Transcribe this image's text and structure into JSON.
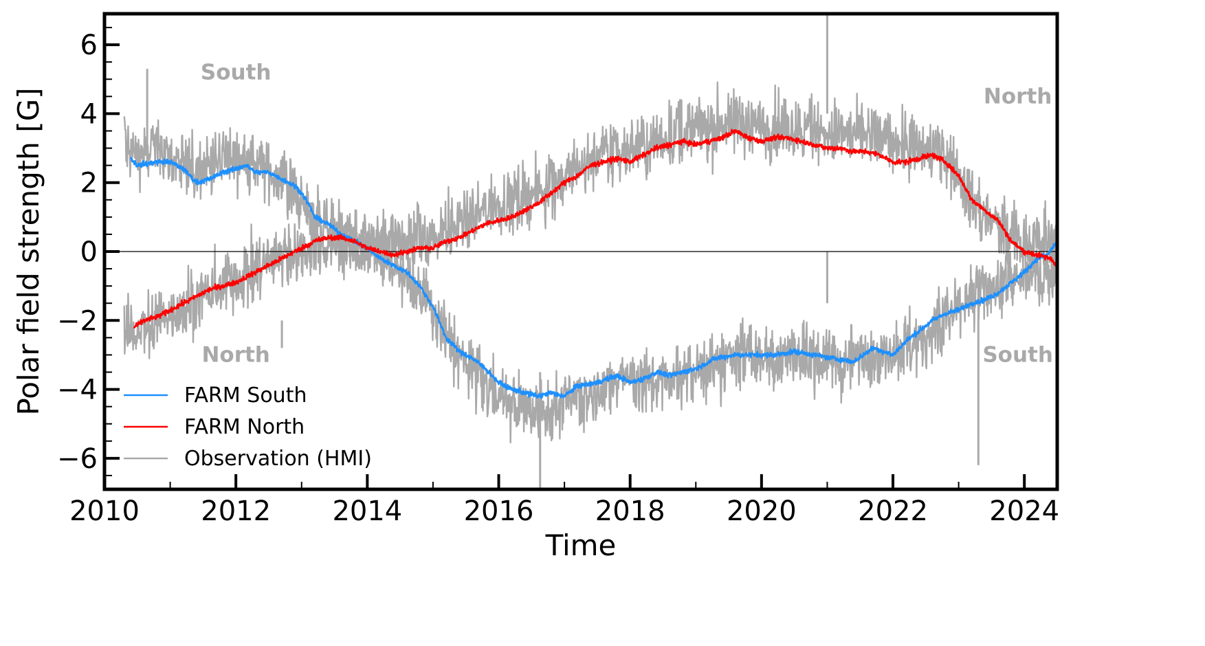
{
  "chart_data": {
    "type": "line",
    "xlabel": "Time",
    "ylabel": "Polar field strength [G]",
    "xlim": [
      2010.0,
      2024.5
    ],
    "ylim": [
      -6.9,
      6.9
    ],
    "x_ticks": [
      2010,
      2012,
      2014,
      2016,
      2018,
      2020,
      2022,
      2024
    ],
    "x_tick_labels": [
      "2010",
      "2012",
      "2014",
      "2016",
      "2018",
      "2020",
      "2022",
      "2024"
    ],
    "y_ticks": [
      6,
      4,
      2,
      0,
      -2,
      -4,
      -6
    ],
    "y_tick_labels": [
      "6",
      "4",
      "2",
      "0",
      "−2",
      "−4",
      "−6"
    ],
    "zero_line": true,
    "grid": false,
    "legend_position": "lower-left",
    "annotations": [
      {
        "text": "South",
        "x": 2012.0,
        "y": 5.0
      },
      {
        "text": "North",
        "x": 2012.0,
        "y": -3.2
      },
      {
        "text": "North",
        "x": 2023.9,
        "y": 4.3
      },
      {
        "text": "South",
        "x": 2023.9,
        "y": -3.2
      }
    ],
    "colors": {
      "farm_south": "#1e90ff",
      "farm_north": "#ff0000",
      "observation": "#a9a9a9"
    },
    "series": [
      {
        "name": "FARM South",
        "color": "#1e90ff",
        "x": [
          2010.4,
          2010.5,
          2010.8,
          2011.0,
          2011.2,
          2011.4,
          2011.6,
          2011.8,
          2012.0,
          2012.15,
          2012.3,
          2012.5,
          2012.7,
          2012.9,
          2013.0,
          2013.1,
          2013.2,
          2013.4,
          2013.6,
          2013.8,
          2014.0,
          2014.2,
          2014.4,
          2014.6,
          2014.8,
          2015.0,
          2015.2,
          2015.4,
          2015.6,
          2015.8,
          2016.0,
          2016.2,
          2016.4,
          2016.6,
          2016.8,
          2017.0,
          2017.2,
          2017.5,
          2017.8,
          2018.0,
          2018.2,
          2018.4,
          2018.6,
          2018.8,
          2019.0,
          2019.3,
          2019.6,
          2019.9,
          2020.2,
          2020.5,
          2020.8,
          2021.1,
          2021.4,
          2021.7,
          2022.0,
          2022.2,
          2022.4,
          2022.6,
          2022.8,
          2023.0,
          2023.2,
          2023.4,
          2023.6,
          2023.8,
          2024.0,
          2024.2,
          2024.35,
          2024.5
        ],
        "y": [
          2.7,
          2.5,
          2.6,
          2.6,
          2.4,
          2.0,
          2.1,
          2.3,
          2.4,
          2.5,
          2.3,
          2.3,
          2.1,
          1.9,
          1.7,
          1.4,
          1.0,
          0.8,
          0.5,
          0.3,
          0.1,
          -0.2,
          -0.4,
          -0.6,
          -1.0,
          -1.6,
          -2.5,
          -2.9,
          -3.1,
          -3.4,
          -3.8,
          -4.0,
          -4.1,
          -4.2,
          -4.1,
          -4.2,
          -3.9,
          -3.8,
          -3.6,
          -3.8,
          -3.7,
          -3.5,
          -3.6,
          -3.5,
          -3.4,
          -3.1,
          -3.0,
          -3.0,
          -3.0,
          -2.9,
          -3.0,
          -3.1,
          -3.2,
          -2.8,
          -3.0,
          -2.6,
          -2.3,
          -2.0,
          -1.8,
          -1.7,
          -1.5,
          -1.4,
          -1.2,
          -0.9,
          -0.6,
          -0.2,
          -0.1,
          0.3
        ]
      },
      {
        "name": "FARM North",
        "color": "#ff0000",
        "x": [
          2010.45,
          2010.6,
          2010.8,
          2011.0,
          2011.2,
          2011.4,
          2011.6,
          2011.8,
          2012.0,
          2012.2,
          2012.4,
          2012.6,
          2012.8,
          2013.0,
          2013.2,
          2013.4,
          2013.6,
          2013.8,
          2014.0,
          2014.2,
          2014.4,
          2014.6,
          2014.8,
          2015.0,
          2015.2,
          2015.4,
          2015.6,
          2015.8,
          2016.0,
          2016.2,
          2016.4,
          2016.6,
          2016.8,
          2017.0,
          2017.2,
          2017.4,
          2017.6,
          2017.8,
          2018.0,
          2018.2,
          2018.4,
          2018.6,
          2018.8,
          2019.0,
          2019.2,
          2019.4,
          2019.6,
          2019.8,
          2020.0,
          2020.2,
          2020.4,
          2020.6,
          2020.8,
          2021.0,
          2021.2,
          2021.4,
          2021.6,
          2021.8,
          2022.0,
          2022.2,
          2022.4,
          2022.6,
          2022.8,
          2023.0,
          2023.2,
          2023.4,
          2023.6,
          2023.8,
          2024.0,
          2024.2,
          2024.4,
          2024.5
        ],
        "y": [
          -2.2,
          -2.0,
          -1.9,
          -1.7,
          -1.5,
          -1.3,
          -1.1,
          -1.0,
          -0.9,
          -0.7,
          -0.5,
          -0.3,
          -0.1,
          0.1,
          0.3,
          0.4,
          0.4,
          0.3,
          0.1,
          0.0,
          -0.1,
          0.0,
          0.1,
          0.1,
          0.3,
          0.4,
          0.6,
          0.8,
          0.9,
          1.0,
          1.2,
          1.4,
          1.7,
          2.0,
          2.2,
          2.5,
          2.6,
          2.7,
          2.6,
          2.8,
          3.0,
          3.1,
          3.2,
          3.1,
          3.2,
          3.3,
          3.5,
          3.3,
          3.2,
          3.3,
          3.3,
          3.2,
          3.1,
          3.0,
          3.0,
          2.9,
          2.9,
          2.8,
          2.6,
          2.6,
          2.7,
          2.8,
          2.6,
          2.2,
          1.5,
          1.2,
          0.9,
          0.3,
          0.0,
          -0.1,
          -0.2,
          -0.4
        ]
      },
      {
        "name": "Observation (HMI)",
        "color": "#a9a9a9",
        "upper_x": [
          2010.3,
          2010.5,
          2010.8,
          2011.0,
          2011.3,
          2011.6,
          2012.0,
          2012.3,
          2012.6,
          2012.9,
          2013.2,
          2013.5,
          2013.8,
          2014.0,
          2014.3,
          2014.6,
          2014.9,
          2015.2,
          2015.5,
          2015.8,
          2016.1,
          2016.4,
          2016.7,
          2017.0,
          2017.3,
          2017.6,
          2017.9,
          2018.2,
          2018.5,
          2018.8,
          2019.1,
          2019.4,
          2019.7,
          2020.0,
          2020.3,
          2020.6,
          2020.9,
          2021.2,
          2021.5,
          2021.8,
          2022.1,
          2022.4,
          2022.7,
          2023.0,
          2023.3,
          2023.6,
          2023.9,
          2024.2,
          2024.5
        ],
        "upper_y": [
          3.2,
          2.8,
          2.9,
          2.7,
          2.3,
          2.6,
          2.7,
          2.6,
          2.2,
          1.6,
          0.9,
          0.6,
          0.3,
          0.2,
          0.2,
          0.3,
          0.4,
          0.6,
          0.9,
          1.2,
          1.4,
          1.6,
          1.8,
          2.1,
          2.5,
          2.8,
          3.0,
          3.1,
          3.3,
          3.5,
          3.6,
          3.7,
          3.8,
          3.7,
          3.6,
          3.6,
          3.5,
          3.4,
          3.3,
          3.3,
          3.2,
          3.0,
          2.9,
          2.2,
          1.2,
          0.7,
          0.3,
          0.2,
          0.4
        ],
        "lower_x": [
          2010.3,
          2010.5,
          2010.8,
          2011.0,
          2011.3,
          2011.6,
          2012.0,
          2012.3,
          2012.6,
          2012.9,
          2013.2,
          2013.5,
          2013.8,
          2014.0,
          2014.3,
          2014.6,
          2014.9,
          2015.2,
          2015.5,
          2015.8,
          2016.1,
          2016.4,
          2016.7,
          2017.0,
          2017.3,
          2017.6,
          2017.9,
          2018.2,
          2018.5,
          2018.8,
          2019.1,
          2019.4,
          2019.7,
          2020.0,
          2020.3,
          2020.6,
          2020.9,
          2021.2,
          2021.5,
          2021.8,
          2022.1,
          2022.4,
          2022.7,
          2023.0,
          2023.3,
          2023.6,
          2023.9,
          2024.2,
          2024.5
        ],
        "lower_y": [
          -2.4,
          -2.3,
          -2.0,
          -1.8,
          -1.5,
          -1.1,
          -0.8,
          -0.5,
          -0.2,
          0.0,
          0.1,
          0.2,
          0.2,
          0.1,
          -0.3,
          -0.8,
          -1.5,
          -2.5,
          -3.3,
          -3.8,
          -4.3,
          -4.6,
          -4.7,
          -4.4,
          -4.2,
          -3.9,
          -3.7,
          -3.8,
          -3.7,
          -3.6,
          -3.4,
          -3.3,
          -3.0,
          -3.1,
          -3.0,
          -2.9,
          -3.1,
          -3.2,
          -3.1,
          -3.0,
          -2.8,
          -2.6,
          -2.2,
          -1.6,
          -1.2,
          -1.0,
          -0.9,
          -0.6,
          -0.5
        ],
        "spikes": [
          {
            "x": 2016.63,
            "y_from": -3.5,
            "y_to": -6.9
          },
          {
            "x": 2021.0,
            "y_from": 4.0,
            "y_to": 6.9
          },
          {
            "x": 2021.0,
            "y_from": 0.0,
            "y_to": -1.5
          },
          {
            "x": 2023.3,
            "y_from": -1.0,
            "y_to": -6.2
          },
          {
            "x": 2010.65,
            "y_from": 3.0,
            "y_to": 5.3
          },
          {
            "x": 2012.7,
            "y_from": -2.0,
            "y_to": -2.8
          }
        ]
      }
    ]
  }
}
